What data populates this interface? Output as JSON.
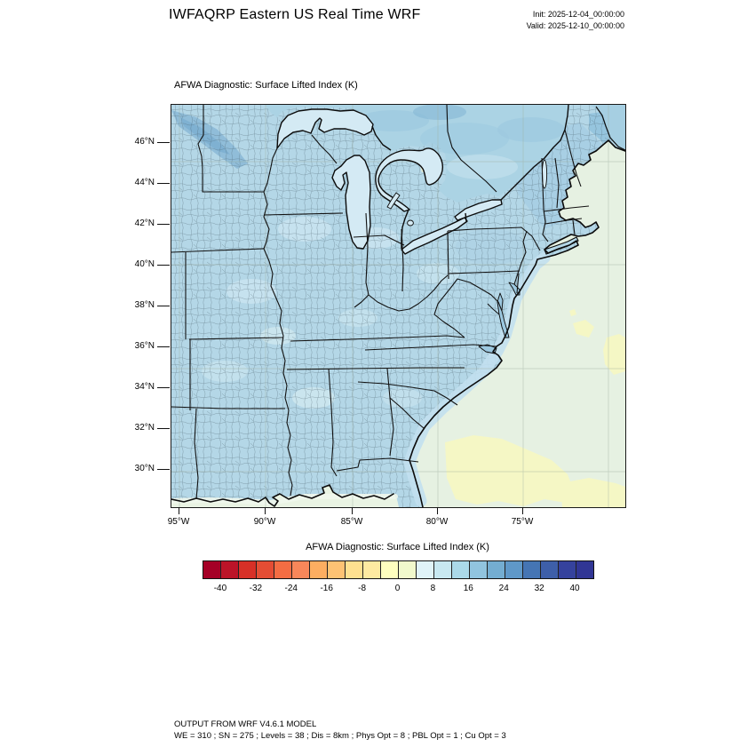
{
  "header": {
    "title": "IWFAQRP Eastern US Real Time WRF",
    "init_label": "Init: 2025-12-04_00:00:00",
    "valid_label": "Valid: 2025-12-10_00:00:00"
  },
  "map": {
    "subtitle": "AFWA Diagnostic: Surface Lifted Index   (K)",
    "lat_ticks": [
      {
        "label": "46°N",
        "pos": 43
      },
      {
        "label": "44°N",
        "pos": 89
      },
      {
        "label": "42°N",
        "pos": 135
      },
      {
        "label": "40°N",
        "pos": 181
      },
      {
        "label": "38°N",
        "pos": 227
      },
      {
        "label": "36°N",
        "pos": 273
      },
      {
        "label": "34°N",
        "pos": 319
      },
      {
        "label": "32°N",
        "pos": 365
      },
      {
        "label": "30°N",
        "pos": 411
      }
    ],
    "lon_ticks": [
      {
        "label": "95°W",
        "pos": 9
      },
      {
        "label": "90°W",
        "pos": 106
      },
      {
        "label": "85°W",
        "pos": 204
      },
      {
        "label": "80°W",
        "pos": 300
      },
      {
        "label": "75°W",
        "pos": 396
      }
    ]
  },
  "footer": {
    "line1": "OUTPUT FROM WRF V4.6.1 MODEL",
    "line2": "WE = 310 ; SN = 275 ; Levels = 38 ; Dis = 8km ; Phys Opt = 8 ; PBL Opt = 1 ; Cu Opt = 3"
  },
  "chart_data": {
    "type": "heatmap",
    "title": "IWFAQRP Eastern US Real Time WRF",
    "subtitle": "AFWA Diagnostic: Surface Lifted Index (K)",
    "variable": "Surface Lifted Index",
    "units": "K",
    "init_time": "2025-12-04_00:00:00",
    "valid_time": "2025-12-10_00:00:00",
    "projection_region": "Eastern United States",
    "x_axis": {
      "label_ticks": [
        "95°W",
        "90°W",
        "85°W",
        "80°W",
        "75°W"
      ],
      "graticule_deg": 5
    },
    "y_axis": {
      "label_ticks": [
        "46°N",
        "44°N",
        "42°N",
        "40°N",
        "38°N",
        "36°N",
        "34°N",
        "32°N",
        "30°N"
      ],
      "graticule_deg": 5
    },
    "colorbar": {
      "title": "AFWA Diagnostic: Surface Lifted Index  (K)",
      "min": -44,
      "max": 44,
      "step": 4,
      "tick_labels": [
        "-40",
        "-32",
        "-24",
        "-16",
        "-8",
        "0",
        "8",
        "16",
        "24",
        "32",
        "40"
      ],
      "colors": [
        "#a50026",
        "#bc1428",
        "#d73027",
        "#e44d34",
        "#f46d43",
        "#f8875a",
        "#fdae61",
        "#fdc274",
        "#fee090",
        "#feeaa1",
        "#ffffbf",
        "#f1f9cc",
        "#e0f3f8",
        "#c8e8f1",
        "#abd9e9",
        "#91c4df",
        "#74add1",
        "#5f98c8",
        "#4575b4",
        "#3e5fa9",
        "#35429d",
        "#313695"
      ]
    },
    "field_summary": {
      "most_land": "8 to 16 K (light blue) over most of the eastern US with county outlines",
      "upper_midwest_band": "16 to 24 K (medium blue) band over northern Minnesota",
      "new_england_canada": "12 to 24 K (light-medium blue), darker patches near Quebec / Maine",
      "great_lakes": "8 to 12 K (very light blue)",
      "atlantic_offshore": "0 to 8 K (pale green with pale yellow 0-4 K patches)",
      "gulf_of_mexico": "4 to 8 K (pale green)",
      "coastal_band": "8 to 12 K light blue band hugging the Atlantic shoreline"
    }
  }
}
